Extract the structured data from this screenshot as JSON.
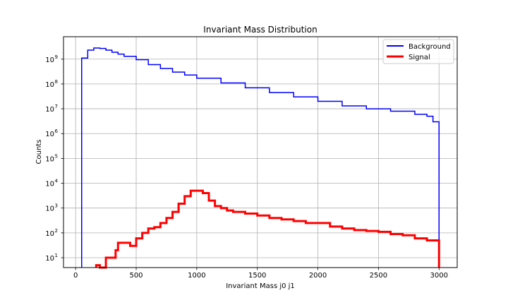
{
  "chart_data": {
    "type": "line",
    "title": "Invariant Mass Distribution",
    "xlabel": "Invariant Mass j0 j1",
    "ylabel": "Counts",
    "xlim": [
      -100,
      3150
    ],
    "ylim": [
      4,
      8000000000
    ],
    "yscale": "log",
    "grid": true,
    "legend_position": "top-right",
    "x_ticks": [
      0,
      500,
      1000,
      1500,
      2000,
      2500,
      3000
    ],
    "y_ticks": [
      {
        "value": 10,
        "label": "10",
        "exp": "1"
      },
      {
        "value": 100,
        "label": "10",
        "exp": "2"
      },
      {
        "value": 1000,
        "label": "10",
        "exp": "3"
      },
      {
        "value": 10000,
        "label": "10",
        "exp": "4"
      },
      {
        "value": 100000,
        "label": "10",
        "exp": "5"
      },
      {
        "value": 1000000,
        "label": "10",
        "exp": "6"
      },
      {
        "value": 10000000,
        "label": "10",
        "exp": "7"
      },
      {
        "value": 100000000,
        "label": "10",
        "exp": "8"
      },
      {
        "value": 1000000000,
        "label": "10",
        "exp": "9"
      }
    ],
    "series": [
      {
        "name": "Background",
        "color": "#0000ff",
        "style": "step",
        "x": [
          50,
          100,
          150,
          200,
          250,
          300,
          350,
          400,
          500,
          600,
          700,
          800,
          900,
          1000,
          1200,
          1400,
          1600,
          1800,
          2000,
          2200,
          2400,
          2600,
          2800,
          2900,
          2950,
          3000
        ],
        "y": [
          1100000000,
          2300000000,
          2800000000,
          2700000000,
          2300000000,
          1900000000,
          1600000000,
          1300000000,
          950000000,
          600000000,
          420000000,
          300000000,
          230000000,
          170000000,
          110000000,
          70000000,
          45000000,
          30000000,
          20000000,
          13000000,
          10000000,
          8000000,
          6000000,
          5000000,
          3000000,
          3000000
        ]
      },
      {
        "name": "Signal",
        "color": "#ff0000",
        "style": "step",
        "x": [
          170,
          200,
          230,
          250,
          300,
          330,
          350,
          400,
          450,
          500,
          550,
          600,
          650,
          700,
          750,
          800,
          850,
          900,
          950,
          1000,
          1050,
          1100,
          1150,
          1200,
          1250,
          1300,
          1400,
          1500,
          1600,
          1700,
          1800,
          1900,
          2000,
          2100,
          2200,
          2300,
          2400,
          2500,
          2600,
          2700,
          2800,
          2900,
          3000
        ],
        "y": [
          5,
          4,
          4,
          10,
          10,
          20,
          40,
          40,
          30,
          60,
          100,
          150,
          170,
          250,
          400,
          700,
          1500,
          3000,
          5000,
          5000,
          4000,
          2000,
          1200,
          1000,
          800,
          700,
          600,
          500,
          400,
          350,
          300,
          250,
          250,
          180,
          150,
          130,
          120,
          110,
          90,
          80,
          60,
          50,
          4
        ]
      }
    ]
  }
}
